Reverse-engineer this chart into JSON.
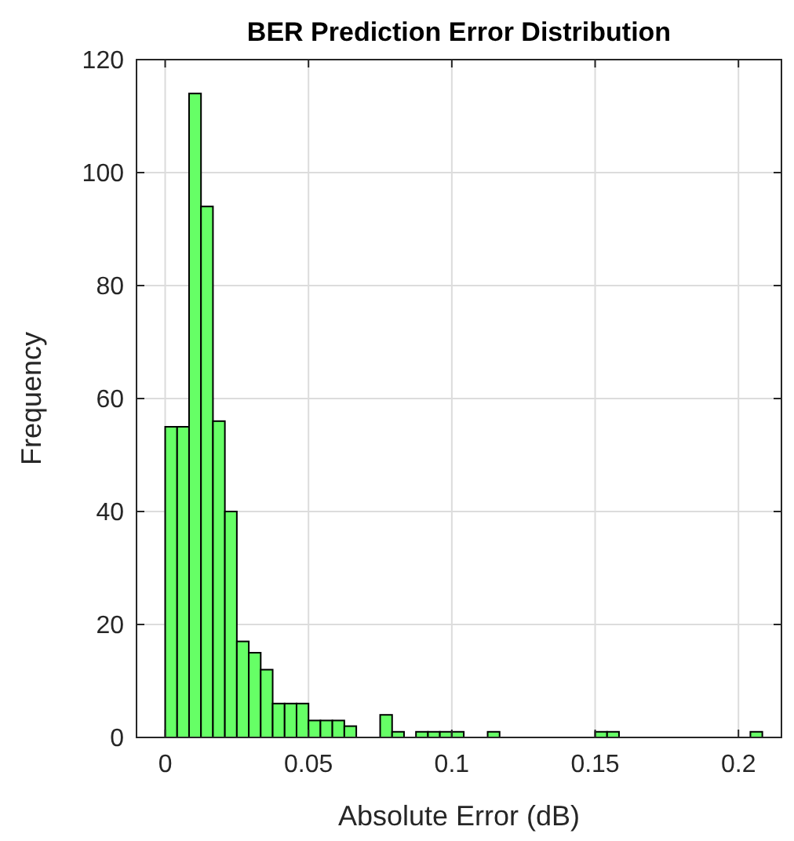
{
  "chart_data": {
    "type": "histogram",
    "title": "BER Prediction Error Distribution",
    "xlabel": "Absolute Error (dB)",
    "ylabel": "Frequency",
    "bins": [
      0,
      0.00417,
      0.00833,
      0.0125,
      0.01667,
      0.02083,
      0.025,
      0.02917,
      0.03333,
      0.0375,
      0.04167,
      0.04583,
      0.05,
      0.05417,
      0.05833,
      0.0625,
      0.06667,
      0.07083,
      0.075,
      0.07917,
      0.08333,
      0.0875,
      0.09167,
      0.09583,
      0.1,
      0.10417,
      0.10833,
      0.1125,
      0.11667,
      0.12083,
      0.125,
      0.12917,
      0.13333,
      0.1375,
      0.14167,
      0.14583,
      0.15,
      0.15417,
      0.15833,
      0.1625,
      0.16667,
      0.17083,
      0.175,
      0.17917,
      0.18333,
      0.1875,
      0.19167,
      0.19583,
      0.2,
      0.20417,
      0.20833
    ],
    "values": [
      55,
      55,
      114,
      94,
      56,
      40,
      17,
      15,
      12,
      6,
      6,
      6,
      3,
      3,
      3,
      2,
      0,
      0,
      4,
      1,
      0,
      1,
      1,
      1,
      1,
      0,
      0,
      1,
      0,
      0,
      0,
      0,
      0,
      0,
      0,
      0,
      1,
      1,
      0,
      0,
      0,
      0,
      0,
      0,
      0,
      0,
      0,
      0,
      0,
      1
    ],
    "color": "#66ff66",
    "xlim": [
      -0.01,
      0.215
    ],
    "xticks": [
      0,
      0.05,
      0.1,
      0.15,
      0.2
    ],
    "ylim": [
      0,
      120
    ],
    "yticks": [
      0,
      20,
      40,
      60,
      80,
      100,
      120
    ],
    "grid": true
  }
}
